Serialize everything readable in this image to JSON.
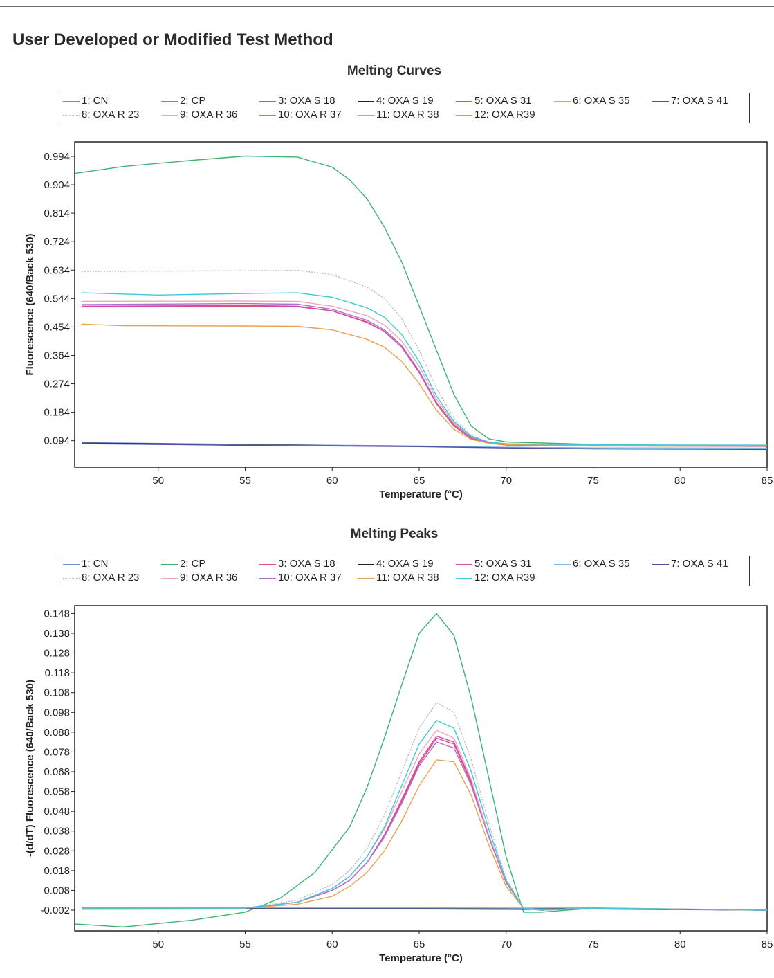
{
  "page": {
    "title": "User Developed or Modified Test Method"
  },
  "legend_entries": [
    {
      "label": "1: CN",
      "color": "#6a8fd0",
      "dash": ""
    },
    {
      "label": "2: CP",
      "color": "#3cb371",
      "dash": ""
    },
    {
      "label": "3: OXA S  18",
      "color": "#e0506a",
      "dash": ""
    },
    {
      "label": "4: OXA S 19",
      "color": "#222222",
      "dash": ""
    },
    {
      "label": "5: OXA S 31",
      "color": "#d04ab0",
      "dash": ""
    },
    {
      "label": "6: OXA S 35",
      "color": "#7ab8e8",
      "dash": ""
    },
    {
      "label": "7: OXA S 41",
      "color": "#5050a0",
      "dash": ""
    },
    {
      "label": "8: OXA R 23",
      "color": "#b8b8b8",
      "dash": "2,2"
    },
    {
      "label": "9: OXA R 36",
      "color": "#f0a8b8",
      "dash": ""
    },
    {
      "label": "10: OXA R 37",
      "color": "#b070d0",
      "dash": ""
    },
    {
      "label": "11: OXA R 38",
      "color": "#e8a050",
      "dash": ""
    },
    {
      "label": "12: OXA R39",
      "color": "#40c8d8",
      "dash": ""
    }
  ],
  "chart_data": [
    {
      "type": "line",
      "title": "Melting Curves",
      "xlabel": "Temperature (°C)",
      "ylabel": "Fluorescence (640/Back 530)",
      "xlim": [
        45.2,
        85
      ],
      "ylim": [
        0.01,
        1.04
      ],
      "xticks": [
        50,
        55,
        60,
        65,
        70,
        75,
        80,
        85
      ],
      "yticks": [
        0.094,
        0.184,
        0.274,
        0.364,
        0.454,
        0.544,
        0.634,
        0.724,
        0.814,
        0.904,
        0.994
      ],
      "legend_position": "top",
      "grid": false,
      "series": [
        {
          "name": "1: CN",
          "x": [
            45.6,
            55,
            65,
            70,
            75,
            85
          ],
          "y": [
            0.088,
            0.082,
            0.077,
            0.073,
            0.071,
            0.07
          ]
        },
        {
          "name": "2: CP",
          "x": [
            45.2,
            48,
            52,
            55,
            58,
            60,
            61,
            62,
            63,
            64,
            65,
            66,
            67,
            68,
            69,
            70,
            75,
            80,
            85
          ],
          "y": [
            0.94,
            0.962,
            0.982,
            0.995,
            0.992,
            0.96,
            0.92,
            0.86,
            0.77,
            0.66,
            0.52,
            0.38,
            0.24,
            0.14,
            0.1,
            0.09,
            0.082,
            0.079,
            0.078
          ]
        },
        {
          "name": "3: OXA S  18",
          "x": [
            45.6,
            55,
            58,
            60,
            62,
            63,
            64,
            65,
            66,
            67,
            68,
            69,
            70,
            75,
            85
          ],
          "y": [
            0.52,
            0.52,
            0.518,
            0.505,
            0.47,
            0.44,
            0.39,
            0.31,
            0.21,
            0.14,
            0.1,
            0.086,
            0.08,
            0.077,
            0.076
          ]
        },
        {
          "name": "4: OXA S 19",
          "x": [
            45.6,
            55,
            65,
            70,
            75,
            85
          ],
          "y": [
            0.086,
            0.081,
            0.076,
            0.072,
            0.07,
            0.068
          ]
        },
        {
          "name": "5: OXA S 31",
          "x": [
            45.6,
            55,
            58,
            60,
            62,
            63,
            64,
            65,
            66,
            67,
            68,
            69,
            70,
            75,
            85
          ],
          "y": [
            0.52,
            0.522,
            0.52,
            0.505,
            0.468,
            0.44,
            0.39,
            0.31,
            0.215,
            0.145,
            0.104,
            0.088,
            0.082,
            0.078,
            0.077
          ]
        },
        {
          "name": "6: OXA S 35",
          "x": [
            45.6,
            55,
            65,
            70,
            75,
            85
          ],
          "y": [
            0.084,
            0.08,
            0.076,
            0.073,
            0.071,
            0.07
          ]
        },
        {
          "name": "7: OXA S 41",
          "x": [
            45.6,
            55,
            65,
            70,
            75,
            85
          ],
          "y": [
            0.085,
            0.079,
            0.075,
            0.071,
            0.068,
            0.066
          ]
        },
        {
          "name": "8: OXA R 23",
          "x": [
            45.6,
            55,
            58,
            60,
            62,
            63,
            64,
            65,
            66,
            67,
            68,
            69,
            70,
            75,
            85
          ],
          "y": [
            0.63,
            0.632,
            0.633,
            0.62,
            0.58,
            0.545,
            0.48,
            0.38,
            0.26,
            0.165,
            0.11,
            0.09,
            0.084,
            0.08,
            0.078
          ]
        },
        {
          "name": "9: OXA R 36",
          "x": [
            45.6,
            55,
            58,
            60,
            62,
            63,
            64,
            65,
            66,
            67,
            68,
            69,
            70,
            75,
            85
          ],
          "y": [
            0.535,
            0.536,
            0.535,
            0.52,
            0.49,
            0.46,
            0.41,
            0.33,
            0.225,
            0.15,
            0.106,
            0.089,
            0.083,
            0.079,
            0.078
          ]
        },
        {
          "name": "10: OXA R 37",
          "x": [
            45.6,
            55,
            58,
            60,
            62,
            63,
            64,
            65,
            66,
            67,
            68,
            69,
            70,
            75,
            85
          ],
          "y": [
            0.525,
            0.528,
            0.526,
            0.51,
            0.475,
            0.445,
            0.395,
            0.315,
            0.215,
            0.144,
            0.103,
            0.088,
            0.082,
            0.078,
            0.077
          ]
        },
        {
          "name": "11: OXA R 38",
          "x": [
            45.6,
            48,
            55,
            58,
            60,
            62,
            63,
            64,
            65,
            66,
            67,
            68,
            69,
            70,
            75,
            85
          ],
          "y": [
            0.463,
            0.458,
            0.457,
            0.456,
            0.445,
            0.415,
            0.39,
            0.345,
            0.275,
            0.19,
            0.13,
            0.098,
            0.086,
            0.081,
            0.078,
            0.077
          ]
        },
        {
          "name": "12: OXA R39",
          "x": [
            45.6,
            50,
            55,
            58,
            60,
            62,
            63,
            64,
            65,
            66,
            67,
            68,
            69,
            70,
            75,
            85
          ],
          "y": [
            0.562,
            0.555,
            0.56,
            0.562,
            0.548,
            0.515,
            0.485,
            0.43,
            0.345,
            0.235,
            0.155,
            0.108,
            0.09,
            0.084,
            0.081,
            0.08
          ]
        }
      ]
    },
    {
      "type": "line",
      "title": "Melting Peaks",
      "xlabel": "Temperature (°C)",
      "ylabel": "-(d/dT) Fluorescence (640/Back 530)",
      "xlim": [
        45.2,
        85
      ],
      "ylim": [
        -0.0125,
        0.152
      ],
      "xticks": [
        50,
        55,
        60,
        65,
        70,
        75,
        80,
        85
      ],
      "yticks": [
        -0.002,
        0.008,
        0.018,
        0.028,
        0.038,
        0.048,
        0.058,
        0.068,
        0.078,
        0.088,
        0.098,
        0.108,
        0.118,
        0.128,
        0.138,
        0.148
      ],
      "legend_position": "top",
      "grid": false,
      "series": [
        {
          "name": "1: CN",
          "x": [
            45.6,
            55,
            65,
            71,
            75,
            85
          ],
          "y": [
            -0.001,
            -0.001,
            -0.001,
            -0.001,
            -0.001,
            -0.002
          ]
        },
        {
          "name": "2: CP",
          "x": [
            45.2,
            48,
            52,
            55,
            57,
            59,
            61,
            62,
            63,
            64,
            65,
            66,
            67,
            68,
            69,
            70,
            71,
            72,
            75,
            85
          ],
          "y": [
            -0.009,
            -0.0105,
            -0.007,
            -0.003,
            0.004,
            0.017,
            0.04,
            0.06,
            0.085,
            0.112,
            0.138,
            0.148,
            0.137,
            0.105,
            0.065,
            0.025,
            -0.003,
            -0.003,
            -0.001,
            -0.002
          ]
        },
        {
          "name": "3: OXA S  18",
          "x": [
            45.6,
            55,
            58,
            60,
            61,
            62,
            63,
            64,
            65,
            66,
            67,
            68,
            69,
            70,
            71,
            72,
            75,
            85
          ],
          "y": [
            -0.001,
            -0.001,
            0.002,
            0.008,
            0.013,
            0.022,
            0.035,
            0.053,
            0.072,
            0.085,
            0.082,
            0.062,
            0.035,
            0.012,
            -0.001,
            -0.002,
            -0.001,
            -0.002
          ]
        },
        {
          "name": "4: OXA S 19",
          "x": [
            45.6,
            55,
            65,
            71,
            75,
            85
          ],
          "y": [
            -0.0012,
            -0.0012,
            -0.0012,
            -0.0014,
            -0.0012,
            -0.002
          ]
        },
        {
          "name": "5: OXA S 31",
          "x": [
            45.6,
            55,
            58,
            60,
            61,
            62,
            63,
            64,
            65,
            66,
            67,
            68,
            69,
            70,
            71,
            72,
            75,
            85
          ],
          "y": [
            -0.001,
            -0.001,
            0.002,
            0.008,
            0.013,
            0.022,
            0.036,
            0.054,
            0.073,
            0.086,
            0.083,
            0.063,
            0.036,
            0.012,
            -0.001,
            -0.002,
            -0.001,
            -0.002
          ]
        },
        {
          "name": "6: OXA S 35",
          "x": [
            45.6,
            55,
            65,
            71,
            75,
            85
          ],
          "y": [
            -0.0008,
            -0.0008,
            -0.0008,
            -0.001,
            -0.0008,
            -0.002
          ]
        },
        {
          "name": "7: OXA S 41",
          "x": [
            45.6,
            55,
            65,
            71,
            75,
            85
          ],
          "y": [
            -0.0015,
            -0.0014,
            -0.0014,
            -0.0016,
            -0.0014,
            -0.002
          ]
        },
        {
          "name": "8: OXA R 23",
          "x": [
            45.6,
            55,
            58,
            60,
            61,
            62,
            63,
            64,
            65,
            66,
            67,
            68,
            69,
            70,
            71,
            72,
            75,
            85
          ],
          "y": [
            -0.001,
            -0.001,
            0.003,
            0.011,
            0.018,
            0.029,
            0.046,
            0.068,
            0.09,
            0.103,
            0.098,
            0.074,
            0.042,
            0.014,
            -0.001,
            -0.002,
            -0.001,
            -0.002
          ]
        },
        {
          "name": "9: OXA R 36",
          "x": [
            45.6,
            55,
            58,
            60,
            61,
            62,
            63,
            64,
            65,
            66,
            67,
            68,
            69,
            70,
            71,
            72,
            75,
            85
          ],
          "y": [
            -0.001,
            -0.001,
            0.002,
            0.009,
            0.015,
            0.025,
            0.039,
            0.058,
            0.077,
            0.089,
            0.085,
            0.064,
            0.036,
            0.012,
            -0.001,
            -0.002,
            -0.001,
            -0.002
          ]
        },
        {
          "name": "10: OXA R 37",
          "x": [
            45.6,
            55,
            58,
            60,
            61,
            62,
            63,
            64,
            65,
            66,
            67,
            68,
            69,
            70,
            71,
            72,
            75,
            85
          ],
          "y": [
            -0.001,
            -0.001,
            0.002,
            0.008,
            0.013,
            0.022,
            0.035,
            0.052,
            0.071,
            0.083,
            0.08,
            0.061,
            0.035,
            0.012,
            -0.001,
            -0.002,
            -0.001,
            -0.002
          ]
        },
        {
          "name": "11: OXA R 38",
          "x": [
            45.6,
            55,
            58,
            60,
            61,
            62,
            63,
            64,
            65,
            66,
            67,
            68,
            69,
            70,
            71,
            72,
            75,
            85
          ],
          "y": [
            -0.001,
            -0.001,
            0.001,
            0.005,
            0.01,
            0.017,
            0.028,
            0.043,
            0.061,
            0.074,
            0.073,
            0.056,
            0.031,
            0.01,
            -0.001,
            -0.002,
            -0.001,
            -0.002
          ]
        },
        {
          "name": "12: OXA R39",
          "x": [
            45.6,
            55,
            58,
            60,
            61,
            62,
            63,
            64,
            65,
            66,
            67,
            68,
            69,
            70,
            71,
            72,
            75,
            85
          ],
          "y": [
            -0.001,
            -0.001,
            0.002,
            0.009,
            0.015,
            0.025,
            0.04,
            0.061,
            0.082,
            0.094,
            0.09,
            0.068,
            0.039,
            0.013,
            -0.001,
            -0.002,
            -0.001,
            -0.002
          ]
        }
      ]
    }
  ]
}
